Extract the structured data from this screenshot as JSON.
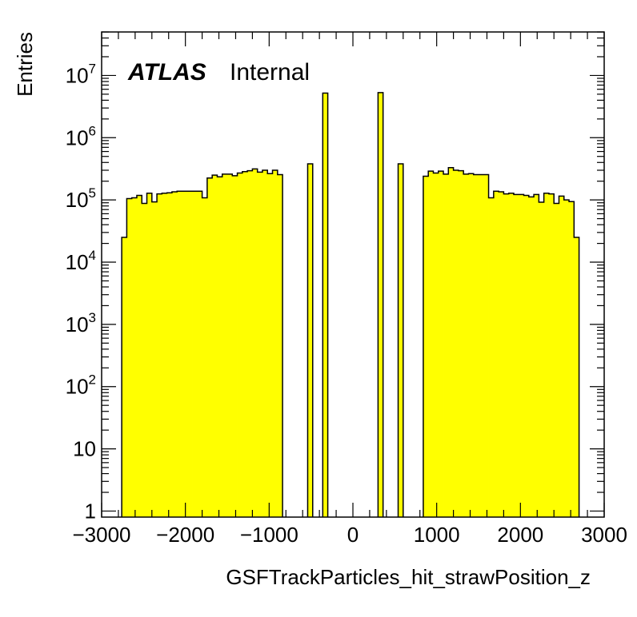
{
  "chart_data": {
    "type": "bar",
    "histogram": true,
    "x_scale": "linear",
    "y_scale": "log",
    "xlim": [
      -3000,
      3000
    ],
    "ylim": [
      0.8,
      50000000
    ],
    "xlabel": "GSFTrackParticles_hit_strawPosition_z",
    "ylabel": "Entries",
    "annotation": {
      "experiment": "ATLAS",
      "status": "Internal"
    },
    "x_tick_labels": [
      "−3000",
      "−2000",
      "−1000",
      "0",
      "1000",
      "2000",
      "3000"
    ],
    "y_tick_labels": [
      {
        "base": "1",
        "exp": ""
      },
      {
        "base": "10",
        "exp": ""
      },
      {
        "base": "10",
        "exp": "2"
      },
      {
        "base": "10",
        "exp": "3"
      },
      {
        "base": "10",
        "exp": "4"
      },
      {
        "base": "10",
        "exp": "5"
      },
      {
        "base": "10",
        "exp": "6"
      },
      {
        "base": "10",
        "exp": "7"
      }
    ],
    "fill_color": "#ffff00",
    "line_color": "#000000",
    "bin_width": 60,
    "x_start": -3000,
    "values": [
      0,
      0,
      0,
      0,
      25000,
      105000,
      108000,
      118000,
      88000,
      128000,
      93000,
      125000,
      128000,
      130000,
      135000,
      138000,
      138000,
      138000,
      138000,
      138000,
      108000,
      225000,
      250000,
      235000,
      260000,
      260000,
      245000,
      270000,
      285000,
      295000,
      315000,
      280000,
      300000,
      265000,
      300000,
      255000,
      0,
      0,
      0,
      0,
      0,
      380000,
      0,
      0,
      5200000,
      0,
      0,
      0,
      0,
      0,
      0,
      0,
      0,
      0,
      0,
      5300000,
      0,
      0,
      0,
      380000,
      0,
      0,
      0,
      0,
      240000,
      290000,
      270000,
      290000,
      260000,
      330000,
      300000,
      295000,
      260000,
      265000,
      255000,
      255000,
      255000,
      108000,
      138000,
      135000,
      125000,
      128000,
      122000,
      122000,
      118000,
      112000,
      122000,
      92000,
      128000,
      125000,
      88000,
      115000,
      100000,
      94000,
      25000,
      0,
      0,
      0,
      0,
      0
    ]
  }
}
